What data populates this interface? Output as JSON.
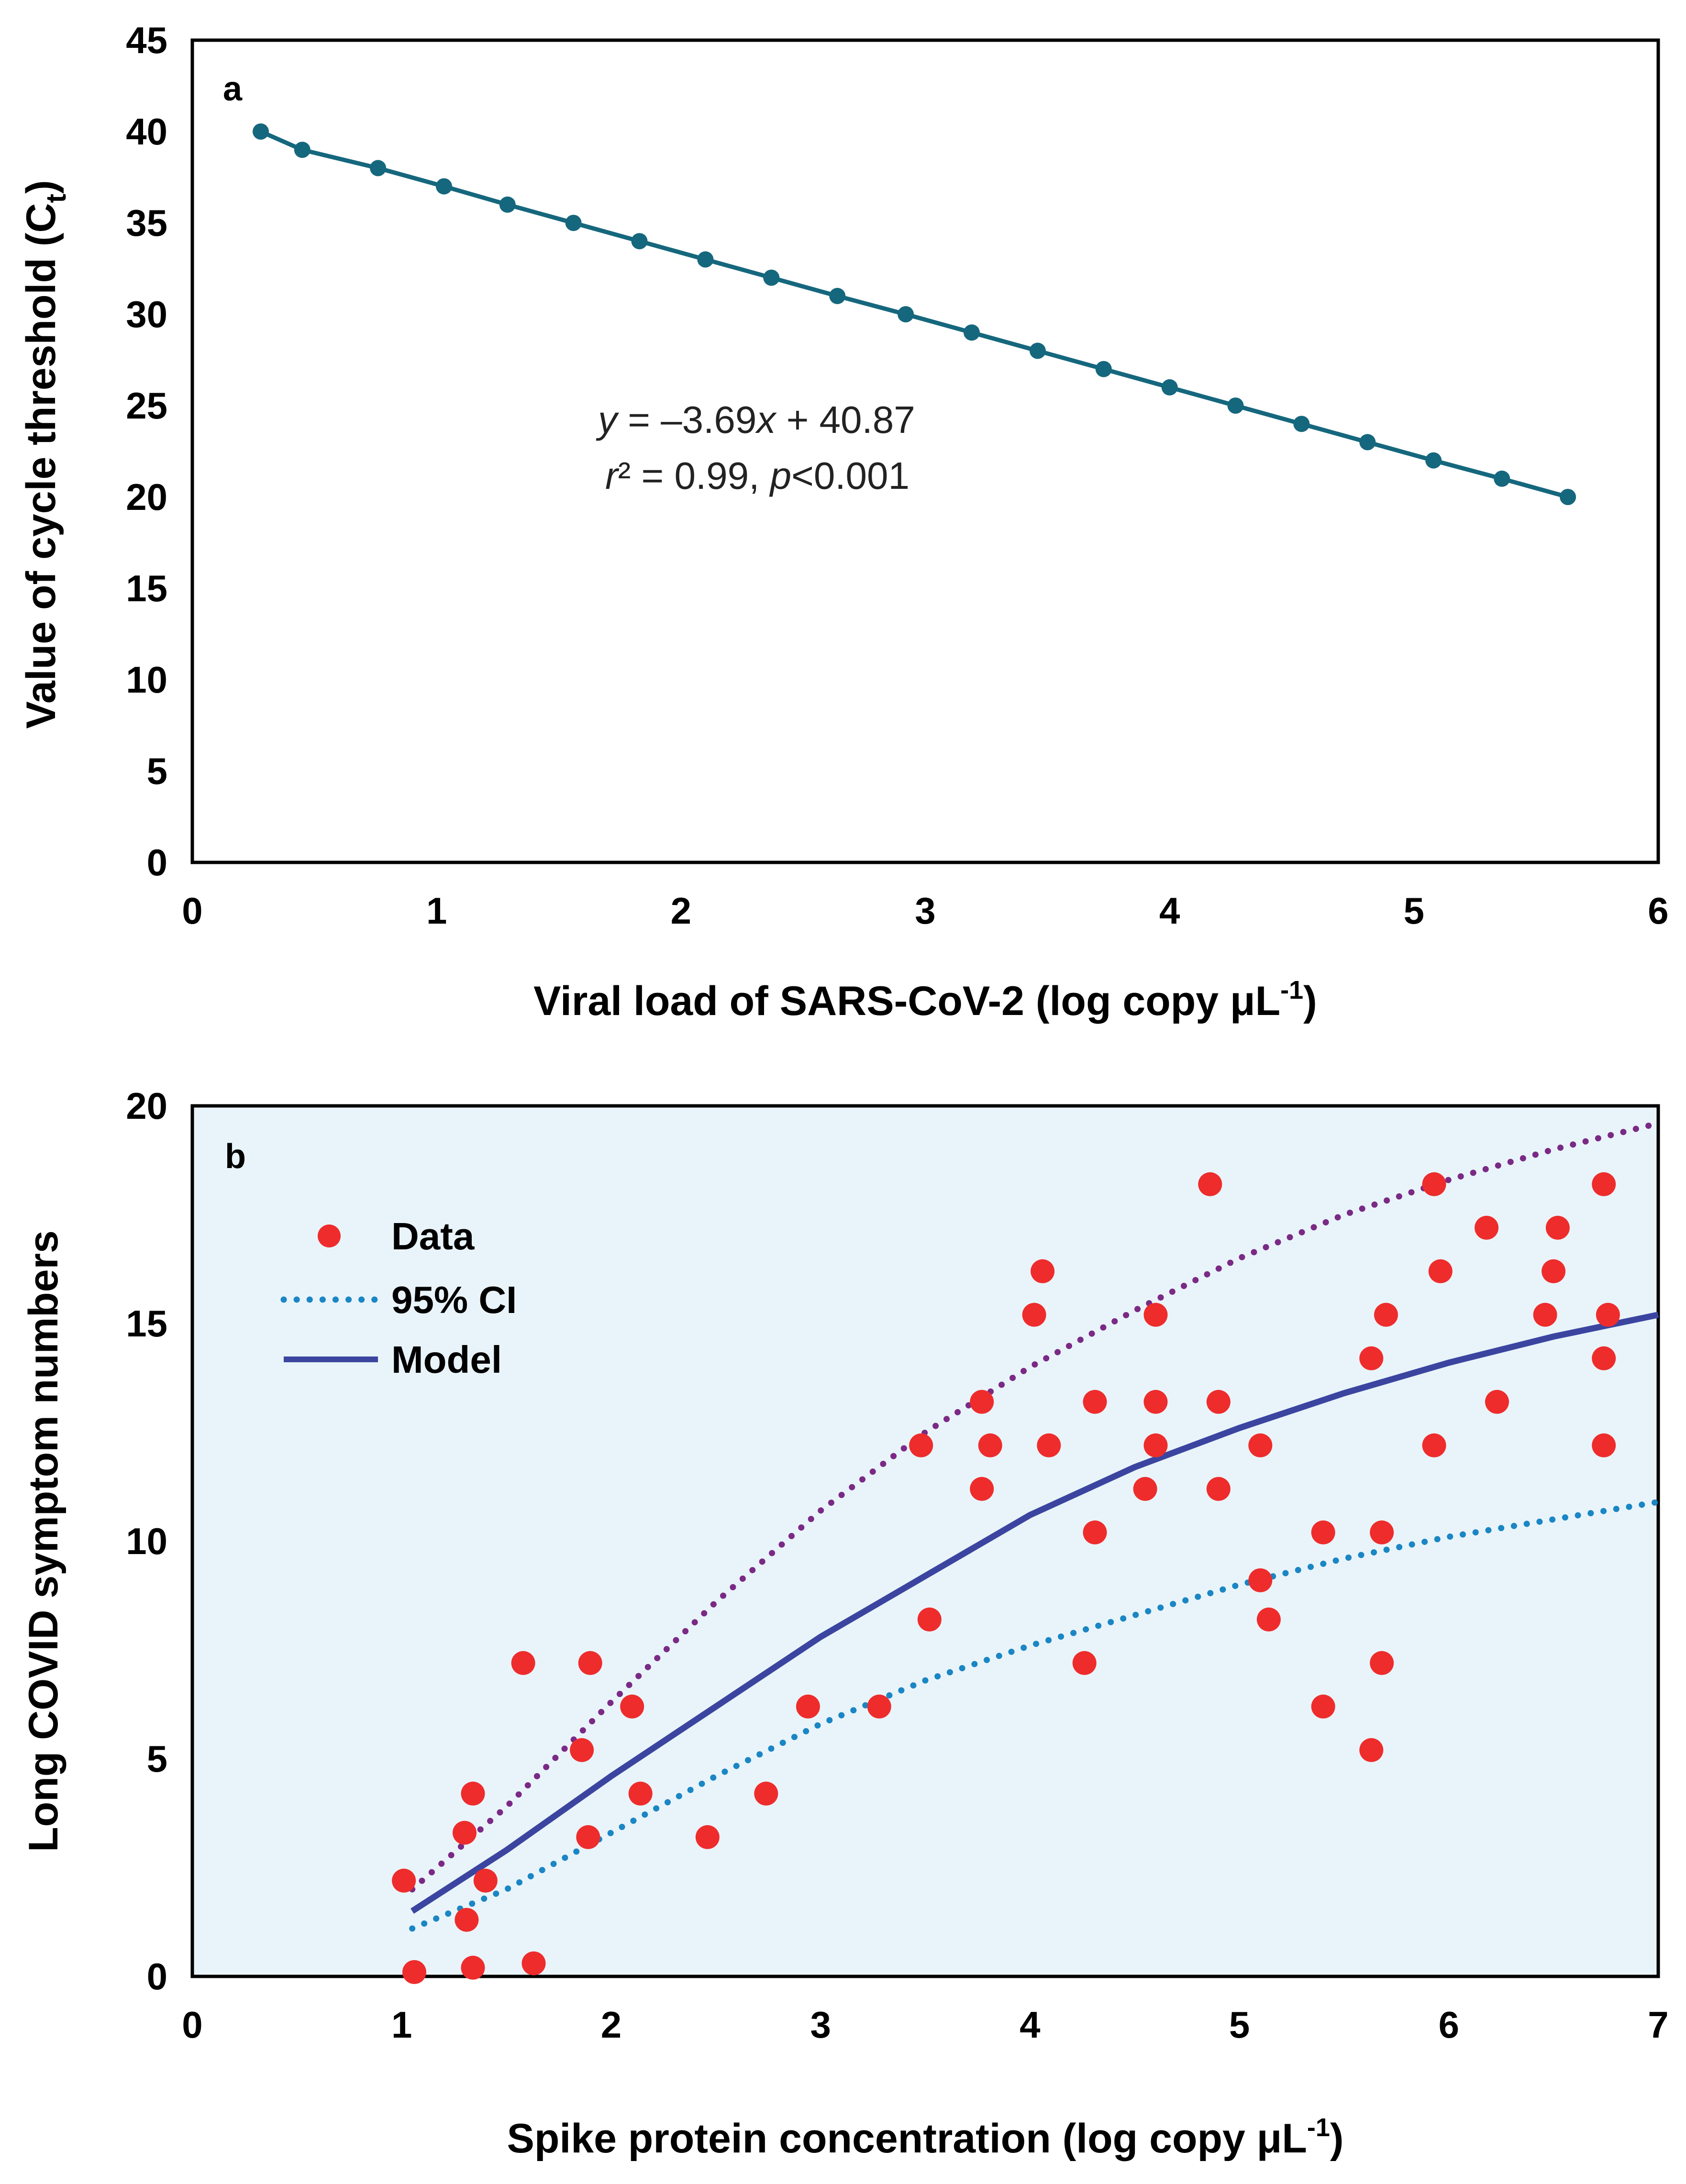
{
  "colors": {
    "panel_a_line": "#15677d",
    "panel_b_bg": "#e9f4fa",
    "data_points": "#ee2c2c",
    "upper_ci": "#7a2a85",
    "lower_ci": "#1a86c4",
    "model": "#3b45a0"
  },
  "chart_data": [
    {
      "panel": "a",
      "type": "line",
      "xlabel": "Viral load of SARS-CoV-2 (log copy μL⁻¹)",
      "xlabel_main": "Viral load of SARS-CoV-2 (log copy μL",
      "xlabel_sup": "-1",
      "xlabel_end": ")",
      "ylabel": "Value of cycle threshold (Ct)",
      "ylabel_main": "Value of cycle threshold (C",
      "ylabel_sub": "t",
      "ylabel_end": ")",
      "xlim": [
        0,
        6
      ],
      "ylim": [
        0,
        45
      ],
      "xticks": [
        "0",
        "1",
        "2",
        "3",
        "4",
        "5",
        "6"
      ],
      "yticks": [
        "0",
        "5",
        "10",
        "15",
        "20",
        "25",
        "30",
        "35",
        "40",
        "45"
      ],
      "grid": false,
      "x": [
        0.28,
        0.45,
        0.76,
        1.03,
        1.29,
        1.56,
        1.83,
        2.1,
        2.37,
        2.64,
        2.92,
        3.19,
        3.46,
        3.73,
        4.0,
        4.27,
        4.54,
        4.81,
        5.08,
        5.36,
        5.63
      ],
      "y": [
        40,
        39,
        38,
        37,
        36,
        35,
        34,
        33,
        32,
        31,
        30,
        29,
        28,
        27,
        26,
        25,
        24,
        23,
        22,
        21,
        20
      ],
      "fit": {
        "slope": -3.69,
        "intercept": 40.87
      },
      "equation_prefix": "y",
      "equation_rest": " = –3.69",
      "equation_x": "x",
      "equation_end": " + 40.87",
      "stats_r": "r",
      "stats_mid": "² = 0.99, ",
      "stats_p": "p",
      "stats_end": "<0.001"
    },
    {
      "panel": "b",
      "type": "scatter",
      "xlabel": "Spike protein concentration (log copy μL⁻¹)",
      "xlabel_main": "Spike protein concentration (log copy μL",
      "xlabel_sup": "-1",
      "xlabel_end": ")",
      "ylabel": "Long COVID symptom numbers",
      "xlim": [
        0,
        7
      ],
      "ylim": [
        0,
        20
      ],
      "xticks": [
        "0",
        "1",
        "2",
        "3",
        "4",
        "5",
        "6",
        "7"
      ],
      "yticks": [
        "0",
        "5",
        "10",
        "15",
        "20"
      ],
      "grid": false,
      "legend": [
        "Data",
        "95% CI",
        "Model"
      ],
      "legend_position": "top-left",
      "points": [
        [
          1.01,
          2.2
        ],
        [
          1.06,
          0.1
        ],
        [
          1.3,
          3.3
        ],
        [
          1.31,
          1.3
        ],
        [
          1.34,
          4.2
        ],
        [
          1.34,
          0.2
        ],
        [
          1.4,
          2.2
        ],
        [
          1.58,
          7.2
        ],
        [
          1.63,
          0.3
        ],
        [
          1.86,
          5.2
        ],
        [
          1.89,
          3.2
        ],
        [
          1.9,
          7.2
        ],
        [
          2.1,
          6.2
        ],
        [
          2.14,
          4.2
        ],
        [
          2.46,
          3.2
        ],
        [
          2.74,
          4.2
        ],
        [
          2.94,
          6.2
        ],
        [
          3.28,
          6.2
        ],
        [
          3.48,
          12.2
        ],
        [
          3.52,
          8.2
        ],
        [
          3.77,
          13.2
        ],
        [
          3.77,
          11.2
        ],
        [
          3.81,
          12.2
        ],
        [
          4.02,
          15.2
        ],
        [
          4.06,
          16.2
        ],
        [
          4.09,
          12.2
        ],
        [
          4.26,
          7.2
        ],
        [
          4.31,
          13.2
        ],
        [
          4.31,
          10.2
        ],
        [
          4.55,
          11.2
        ],
        [
          4.6,
          15.2
        ],
        [
          4.6,
          13.2
        ],
        [
          4.6,
          12.2
        ],
        [
          4.86,
          18.2
        ],
        [
          4.9,
          13.2
        ],
        [
          4.9,
          11.2
        ],
        [
          5.1,
          12.2
        ],
        [
          5.1,
          9.1
        ],
        [
          5.14,
          8.2
        ],
        [
          5.4,
          10.2
        ],
        [
          5.4,
          6.2
        ],
        [
          5.63,
          14.2
        ],
        [
          5.63,
          5.2
        ],
        [
          5.68,
          10.2
        ],
        [
          5.68,
          7.2
        ],
        [
          5.7,
          15.2
        ],
        [
          5.93,
          18.2
        ],
        [
          5.93,
          12.2
        ],
        [
          5.96,
          16.2
        ],
        [
          6.18,
          17.2
        ],
        [
          6.23,
          13.2
        ],
        [
          6.46,
          15.2
        ],
        [
          6.5,
          16.2
        ],
        [
          6.52,
          17.2
        ],
        [
          6.74,
          18.2
        ],
        [
          6.74,
          14.2
        ],
        [
          6.74,
          12.2
        ],
        [
          6.76,
          15.2
        ]
      ],
      "model": {
        "x": [
          1.05,
          1.5,
          2.0,
          2.5,
          3.0,
          3.5,
          4.0,
          4.5,
          5.0,
          5.5,
          6.0,
          6.5,
          7.0
        ],
        "y": [
          1.5,
          2.9,
          4.6,
          6.2,
          7.8,
          9.2,
          10.6,
          11.7,
          12.6,
          13.4,
          14.1,
          14.7,
          15.2
        ]
      },
      "ci_upper": {
        "x": [
          1.05,
          1.5,
          2.0,
          2.5,
          3.0,
          3.5,
          4.0,
          4.5,
          5.0,
          5.5,
          6.0,
          6.5,
          7.0
        ],
        "y": [
          2.0,
          3.9,
          6.3,
          8.6,
          10.7,
          12.5,
          14.0,
          15.3,
          16.5,
          17.5,
          18.3,
          19.0,
          19.6
        ]
      },
      "ci_lower": {
        "x": [
          1.05,
          1.5,
          2.0,
          2.5,
          3.0,
          3.5,
          4.0,
          4.5,
          5.0,
          5.5,
          6.0,
          6.5,
          7.0
        ],
        "y": [
          1.1,
          2.0,
          3.3,
          4.6,
          5.8,
          6.8,
          7.6,
          8.3,
          9.0,
          9.6,
          10.1,
          10.5,
          10.9
        ]
      }
    }
  ],
  "panel_a_label": "a",
  "panel_b_label": "b"
}
